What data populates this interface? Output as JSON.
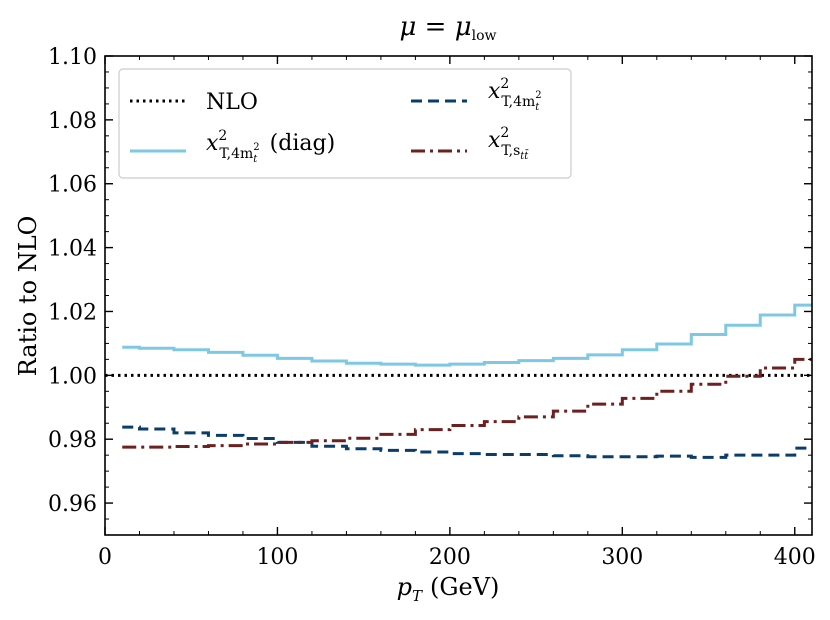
{
  "chart_data": {
    "type": "line",
    "drawstyle": "steps",
    "title": {
      "main": "μ = μ",
      "sub": "low"
    },
    "xlabel": {
      "var": "p",
      "sub": "T",
      "unit": "(GeV)"
    },
    "ylabel": "Ratio to NLO",
    "xlim": [
      0,
      410
    ],
    "ylim": [
      0.95,
      1.1
    ],
    "xticks": [
      0,
      100,
      200,
      300,
      400
    ],
    "yticks": [
      0.96,
      0.98,
      1.0,
      1.02,
      1.04,
      1.06,
      1.08,
      1.1
    ],
    "xtick_labels": [
      "0",
      "100",
      "200",
      "300",
      "400"
    ],
    "ytick_labels": [
      "0.96",
      "0.98",
      "1.00",
      "1.02",
      "1.04",
      "1.06",
      "1.08",
      "1.10"
    ],
    "legend_position": "top-left",
    "bin_edges": [
      10,
      20,
      40,
      60,
      80,
      100,
      120,
      140,
      160,
      180,
      200,
      220,
      240,
      260,
      280,
      300,
      320,
      340,
      360,
      380,
      400,
      410
    ],
    "series": [
      {
        "name": "NLO",
        "label_main": "NLO",
        "style": "dotted",
        "color": "#000000",
        "values": [
          1.0,
          1.0,
          1.0,
          1.0,
          1.0,
          1.0,
          1.0,
          1.0,
          1.0,
          1.0,
          1.0,
          1.0,
          1.0,
          1.0,
          1.0,
          1.0,
          1.0,
          1.0,
          1.0,
          1.0,
          1.0
        ],
        "x_from": 0
      },
      {
        "name": "xT2_4mt2_diag",
        "label_main": "x",
        "label_sup": "2",
        "label_sub": "T,4m",
        "label_sub2": "t",
        "label_sup2": "2",
        "label_suffix": "(diag)",
        "style": "solid",
        "color": "#7ec8e3",
        "values": [
          1.0088,
          1.0085,
          1.008,
          1.0072,
          1.0063,
          1.0053,
          1.0045,
          1.0038,
          1.0035,
          1.0032,
          1.0035,
          1.004,
          1.0046,
          1.0053,
          1.0064,
          1.008,
          1.0098,
          1.0128,
          1.0157,
          1.0189,
          1.022,
          1.0278
        ]
      },
      {
        "name": "xT2_4mt2",
        "label_main": "x",
        "label_sup": "2",
        "label_sub": "T,4m",
        "label_sub2": "t",
        "label_sup2": "2",
        "style": "dashed",
        "color": "#0b3d6b",
        "values": [
          0.9838,
          0.9832,
          0.982,
          0.9812,
          0.9802,
          0.979,
          0.9778,
          0.977,
          0.9765,
          0.976,
          0.9755,
          0.9752,
          0.9752,
          0.9748,
          0.9745,
          0.9745,
          0.9747,
          0.9743,
          0.975,
          0.975,
          0.9772,
          0.9765
        ]
      },
      {
        "name": "xT2_stt",
        "label_main": "x",
        "label_sup": "2",
        "label_sub": "T,s",
        "label_sub2": "tt̄",
        "style": "dashdot",
        "color": "#6e1f1f",
        "values": [
          0.9775,
          0.9775,
          0.9777,
          0.978,
          0.9785,
          0.979,
          0.9795,
          0.9803,
          0.9815,
          0.983,
          0.9843,
          0.9855,
          0.987,
          0.9888,
          0.991,
          0.9928,
          0.995,
          0.9972,
          0.9997,
          1.0023,
          1.005,
          1.0093
        ]
      }
    ]
  }
}
